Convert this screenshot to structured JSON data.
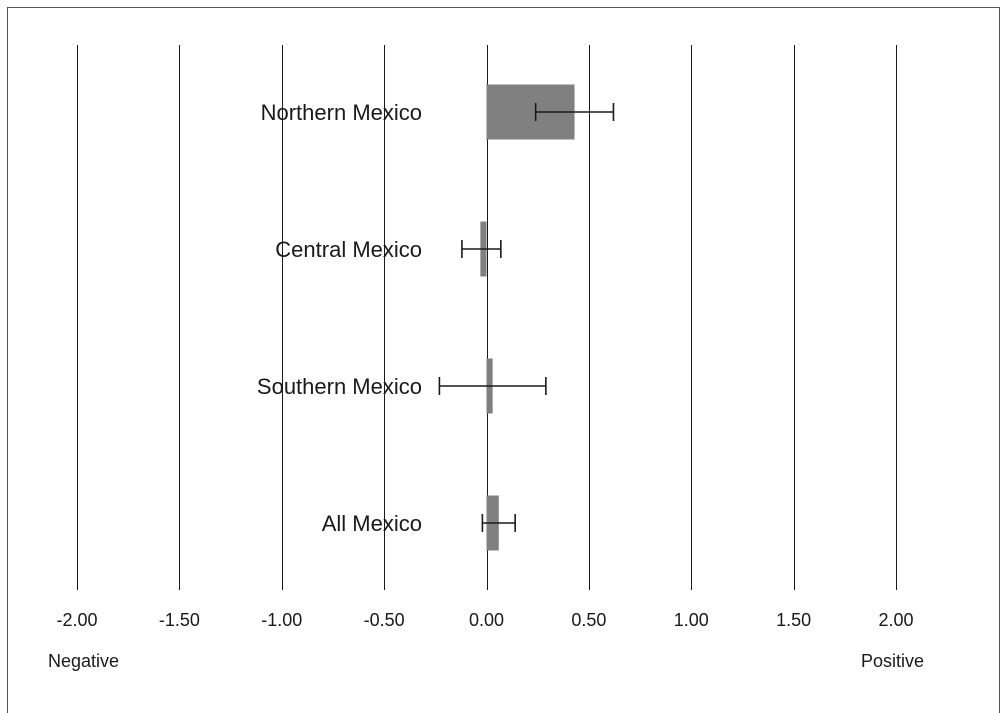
{
  "chart_data": {
    "type": "bar",
    "orientation": "horizontal",
    "categories": [
      "Northern Mexico",
      "Central Mexico",
      "Southern Mexico",
      "All Mexico"
    ],
    "series": [
      {
        "values": [
          0.43,
          -0.03,
          0.03,
          0.06
        ],
        "error_low": [
          0.24,
          -0.12,
          -0.23,
          -0.02
        ],
        "error_high": [
          0.62,
          0.07,
          0.29,
          0.14
        ]
      }
    ],
    "xlim": [
      -2.0,
      2.0
    ],
    "x_ticks": [
      -2.0,
      -1.5,
      -1.0,
      -0.5,
      0.0,
      0.5,
      1.0,
      1.5,
      2.0
    ],
    "tick_labels": [
      "-2.00",
      "-1.50",
      "-1.00",
      "-0.50",
      "0.00",
      "0.50",
      "1.00",
      "1.50",
      "2.00"
    ],
    "left_end_label": "Negative",
    "right_end_label": "Positive",
    "grid": true,
    "legend": "none",
    "colors": {
      "bar": "#808080",
      "lines": "#1a1a1a"
    }
  }
}
